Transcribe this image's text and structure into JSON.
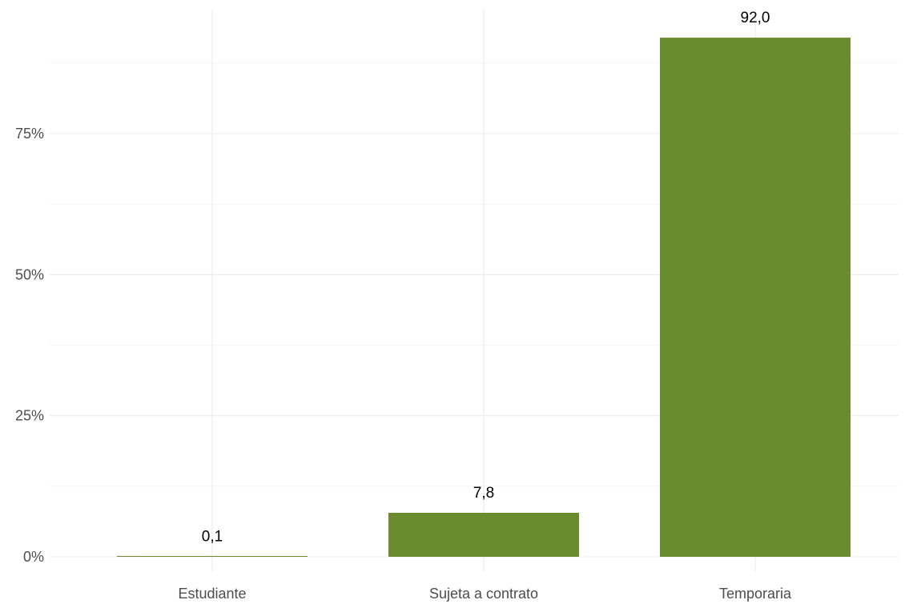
{
  "chart_data": {
    "type": "bar",
    "categories": [
      "Estudiante",
      "Sujeta a contrato",
      "Temporaria"
    ],
    "values": [
      0.1,
      7.8,
      92.0
    ],
    "data_labels": [
      "0,1",
      "7,8",
      "92,0"
    ],
    "ylim": [
      0,
      100
    ],
    "y_ticks": [
      0,
      25,
      50,
      75
    ],
    "y_tick_labels": [
      "0%",
      "25%",
      "50%",
      "75%"
    ],
    "grid": true,
    "bar_color": "#6a8b2f",
    "title": "",
    "xlabel": "",
    "ylabel": ""
  }
}
